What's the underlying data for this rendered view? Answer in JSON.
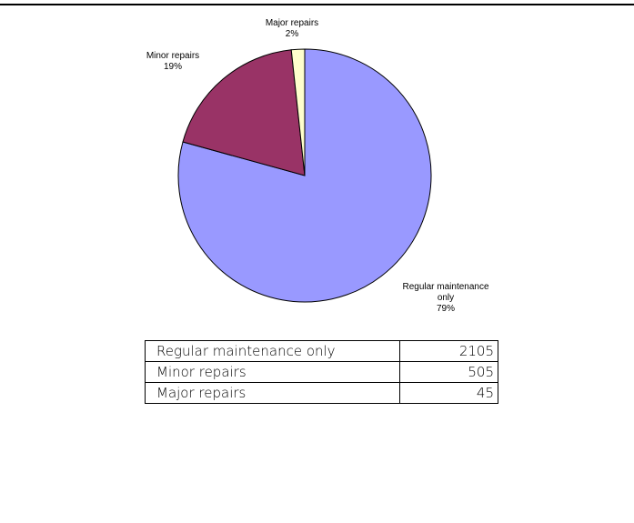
{
  "chart_data": {
    "type": "pie",
    "categories": [
      "Regular maintenance only",
      "Minor repairs",
      "Major repairs"
    ],
    "values": [
      2105,
      505,
      45
    ],
    "percent_labels": [
      "79%",
      "19%",
      "2%"
    ],
    "slice_labels": [
      {
        "lines": [
          "Regular maintenance",
          "only",
          "79%"
        ]
      },
      {
        "lines": [
          "Minor repairs",
          "19%"
        ]
      },
      {
        "lines": [
          "Major repairs",
          "2%"
        ]
      }
    ],
    "colors": [
      "#9999ff",
      "#993366",
      "#ffffcc"
    ],
    "start": "12 o'clock",
    "direction": "clockwise"
  },
  "table": {
    "rows": [
      {
        "label": "Regular maintenance only",
        "value": "2105"
      },
      {
        "label": "Minor repairs",
        "value": "505"
      },
      {
        "label": "Major repairs",
        "value": "45"
      }
    ]
  }
}
